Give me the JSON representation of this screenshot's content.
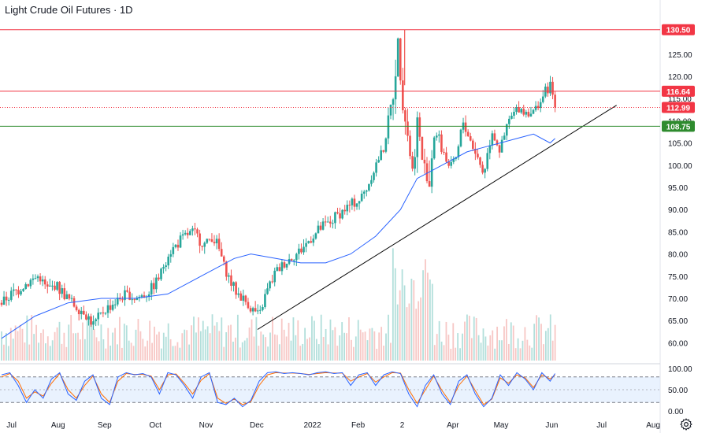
{
  "title": "Light Crude Oil Futures · 1D",
  "settings_icon": "gear-icon",
  "colors": {
    "up": "#26a69a",
    "down": "#ef5350",
    "resistance": "#f23645",
    "support": "#2e8b2e",
    "ma": "#2962ff",
    "stoch_k": "#2962ff",
    "stoch_d": "#ff6d00",
    "stoch_band": "#dbeafe",
    "trendline": "#000000"
  },
  "chart_data": {
    "type": "candlestick",
    "symbol": "Light Crude Oil Futures",
    "interval": "1D",
    "price_axis": {
      "min": 56,
      "max": 134,
      "ticks": [
        "60.00",
        "65.00",
        "70.00",
        "75.00",
        "80.00",
        "85.00",
        "90.00",
        "95.00",
        "100.00",
        "105.00",
        "110.00",
        "115.00",
        "120.00",
        "125.00"
      ]
    },
    "time_axis": {
      "labels": [
        "Jul",
        "Aug",
        "Sep",
        "Oct",
        "Nov",
        "Dec",
        "2022",
        "Feb",
        "2",
        "Apr",
        "May",
        "Jun",
        "Jul",
        "Aug"
      ],
      "label_days": [
        12,
        68,
        124,
        185,
        246,
        307,
        374,
        429,
        482,
        543,
        601,
        662,
        722,
        784
      ],
      "last_day": 666
    },
    "price_path_days": [
      0,
      12,
      20,
      35,
      45,
      55,
      65,
      75,
      90,
      100,
      110,
      122,
      135,
      150,
      160,
      175,
      190,
      200,
      210,
      220,
      230,
      245,
      253,
      260,
      270,
      280,
      290,
      300,
      310,
      318,
      325,
      330,
      340,
      355,
      370,
      385,
      395,
      405,
      420,
      430,
      440,
      450,
      460,
      470,
      477,
      482,
      485,
      490,
      495,
      500,
      507,
      515,
      520,
      530,
      540,
      548,
      555,
      563,
      570,
      580,
      590,
      600,
      610,
      622,
      630,
      640,
      650,
      660,
      666
    ],
    "price_path_values": [
      69,
      71,
      72,
      74,
      75,
      72,
      73,
      71,
      68,
      67,
      64,
      67,
      69,
      71,
      70,
      71,
      75,
      80,
      82,
      84,
      85,
      82,
      84,
      82,
      76,
      72,
      70,
      68,
      66,
      71,
      74,
      76,
      78,
      80,
      83,
      86,
      87,
      89,
      91,
      92,
      95,
      100,
      104,
      115,
      128,
      118,
      112,
      105,
      98,
      110,
      100,
      96,
      108,
      104,
      99,
      102,
      110,
      106,
      103,
      98,
      108,
      103,
      110,
      113,
      112,
      112,
      115,
      118,
      113
    ],
    "moving_average": {
      "days": [
        0,
        40,
        80,
        120,
        160,
        200,
        240,
        280,
        300,
        330,
        360,
        390,
        420,
        450,
        480,
        500,
        520,
        540,
        560,
        580,
        600,
        620,
        640,
        660,
        666
      ],
      "values": [
        61,
        66,
        69,
        70,
        70,
        71,
        75,
        79,
        80,
        79,
        78,
        78,
        80,
        84,
        90,
        97,
        99,
        101,
        103,
        104,
        105,
        106,
        107,
        105,
        106
      ]
    },
    "volume_bars": 240,
    "horizontal_levels": [
      {
        "value": 130.5,
        "label": "130.50",
        "style": "solid",
        "color_key": "resistance"
      },
      {
        "value": 116.64,
        "label": "116.64",
        "style": "solid",
        "color_key": "resistance"
      },
      {
        "value": 112.99,
        "label": "112.99",
        "style": "dotted",
        "color_key": "resistance"
      },
      {
        "value": 108.75,
        "label": "108.75",
        "style": "solid",
        "color_key": "support"
      }
    ],
    "trendline": {
      "start": {
        "day": 308,
        "price": 63
      },
      "end": {
        "day": 740,
        "price": 113.5
      }
    },
    "stochastic": {
      "axis": {
        "min": 0,
        "max": 100,
        "ticks": [
          "0.00",
          "50.00",
          "100.00"
        ]
      },
      "band": [
        20,
        80
      ],
      "days": [
        0,
        10,
        20,
        30,
        40,
        50,
        60,
        70,
        80,
        90,
        100,
        110,
        120,
        130,
        140,
        150,
        160,
        170,
        180,
        190,
        200,
        210,
        220,
        230,
        240,
        250,
        260,
        270,
        280,
        290,
        300,
        310,
        320,
        330,
        340,
        350,
        360,
        370,
        380,
        390,
        400,
        410,
        420,
        430,
        440,
        450,
        460,
        470,
        480,
        490,
        500,
        510,
        520,
        530,
        540,
        550,
        560,
        570,
        580,
        590,
        600,
        610,
        620,
        630,
        640,
        650,
        660,
        666
      ],
      "k": [
        85,
        90,
        60,
        20,
        50,
        30,
        75,
        90,
        40,
        25,
        70,
        85,
        30,
        15,
        80,
        90,
        85,
        88,
        80,
        40,
        90,
        85,
        60,
        30,
        80,
        90,
        20,
        15,
        30,
        10,
        25,
        70,
        90,
        92,
        88,
        90,
        88,
        85,
        90,
        92,
        88,
        90,
        60,
        85,
        90,
        60,
        85,
        92,
        88,
        40,
        10,
        60,
        85,
        40,
        15,
        70,
        85,
        40,
        10,
        30,
        85,
        60,
        90,
        75,
        50,
        90,
        70,
        88
      ],
      "d": [
        80,
        88,
        70,
        30,
        45,
        35,
        65,
        88,
        50,
        30,
        60,
        82,
        40,
        20,
        70,
        88,
        86,
        86,
        82,
        50,
        85,
        87,
        65,
        40,
        72,
        88,
        30,
        18,
        28,
        15,
        22,
        60,
        85,
        90,
        89,
        89,
        88,
        86,
        88,
        90,
        89,
        89,
        70,
        80,
        88,
        68,
        80,
        90,
        89,
        50,
        18,
        50,
        82,
        48,
        20,
        60,
        82,
        48,
        15,
        28,
        78,
        65,
        85,
        78,
        55,
        85,
        75,
        85
      ]
    }
  }
}
